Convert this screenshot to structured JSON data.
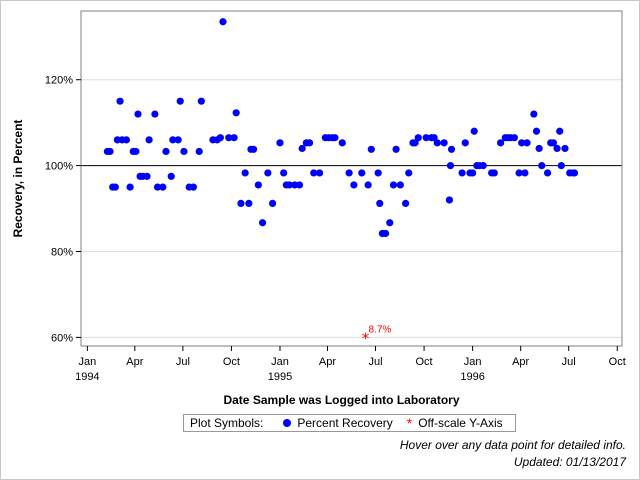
{
  "chart_data": {
    "type": "scatter",
    "ylabel": "Recovery, in Percent",
    "xlabel": "Date Sample was Logged into Laboratory",
    "ylim": [
      58,
      136
    ],
    "xlim": [
      "1993-12-20",
      "1996-10-10"
    ],
    "y_ticks": [
      60,
      80,
      100,
      120
    ],
    "y_tick_labels": [
      "60%",
      "80%",
      "100%",
      "120%"
    ],
    "x_ticks": [
      {
        "date": "1994-01-01",
        "label": "Jan",
        "year": "1994"
      },
      {
        "date": "1994-04-01",
        "label": "Apr",
        "year": ""
      },
      {
        "date": "1994-07-01",
        "label": "Jul",
        "year": ""
      },
      {
        "date": "1994-10-01",
        "label": "Oct",
        "year": ""
      },
      {
        "date": "1995-01-01",
        "label": "Jan",
        "year": "1995"
      },
      {
        "date": "1995-04-01",
        "label": "Apr",
        "year": ""
      },
      {
        "date": "1995-07-01",
        "label": "Jul",
        "year": ""
      },
      {
        "date": "1995-10-01",
        "label": "Oct",
        "year": ""
      },
      {
        "date": "1996-01-01",
        "label": "Jan",
        "year": "1996"
      },
      {
        "date": "1996-04-01",
        "label": "Apr",
        "year": ""
      },
      {
        "date": "1996-07-01",
        "label": "Jul",
        "year": ""
      },
      {
        "date": "1996-10-01",
        "label": "Oct",
        "year": ""
      }
    ],
    "reference_line": 100,
    "grid": "horizontal",
    "colors": {
      "points": "#0000ff",
      "offscale": "#ff0000",
      "reference": "#000000",
      "grid": "#dddddd",
      "axis": "#808080"
    },
    "series": [
      {
        "name": "Percent Recovery",
        "points": [
          {
            "x": "1994-02-08",
            "y": 103.3
          },
          {
            "x": "1994-02-13",
            "y": 103.3
          },
          {
            "x": "1994-02-18",
            "y": 95.0
          },
          {
            "x": "1994-02-23",
            "y": 95.0
          },
          {
            "x": "1994-02-27",
            "y": 106.0
          },
          {
            "x": "1994-03-04",
            "y": 115.0
          },
          {
            "x": "1994-03-08",
            "y": 106.0
          },
          {
            "x": "1994-03-16",
            "y": 106.0
          },
          {
            "x": "1994-03-23",
            "y": 95.0
          },
          {
            "x": "1994-03-29",
            "y": 103.3
          },
          {
            "x": "1994-04-03",
            "y": 103.3
          },
          {
            "x": "1994-04-07",
            "y": 112.0
          },
          {
            "x": "1994-04-11",
            "y": 97.5
          },
          {
            "x": "1994-04-16",
            "y": 97.5
          },
          {
            "x": "1994-04-24",
            "y": 97.5
          },
          {
            "x": "1994-04-28",
            "y": 106.0
          },
          {
            "x": "1994-05-09",
            "y": 112.0
          },
          {
            "x": "1994-05-14",
            "y": 95.0
          },
          {
            "x": "1994-05-24",
            "y": 95.0
          },
          {
            "x": "1994-05-30",
            "y": 103.3
          },
          {
            "x": "1994-06-09",
            "y": 97.5
          },
          {
            "x": "1994-06-12",
            "y": 106.0
          },
          {
            "x": "1994-06-22",
            "y": 106.0
          },
          {
            "x": "1994-06-26",
            "y": 115.0
          },
          {
            "x": "1994-07-03",
            "y": 103.3
          },
          {
            "x": "1994-07-13",
            "y": 95.0
          },
          {
            "x": "1994-07-21",
            "y": 95.0
          },
          {
            "x": "1994-08-01",
            "y": 103.3
          },
          {
            "x": "1994-08-05",
            "y": 115.0
          },
          {
            "x": "1994-08-27",
            "y": 106.0
          },
          {
            "x": "1994-09-04",
            "y": 106.0
          },
          {
            "x": "1994-09-10",
            "y": 106.5
          },
          {
            "x": "1994-09-15",
            "y": 133.5
          },
          {
            "x": "1994-09-26",
            "y": 106.5
          },
          {
            "x": "1994-10-06",
            "y": 106.5
          },
          {
            "x": "1994-10-10",
            "y": 112.3
          },
          {
            "x": "1994-10-19",
            "y": 91.2
          },
          {
            "x": "1994-10-27",
            "y": 98.3
          },
          {
            "x": "1994-11-03",
            "y": 91.2
          },
          {
            "x": "1994-11-07",
            "y": 103.8
          },
          {
            "x": "1994-11-12",
            "y": 103.8
          },
          {
            "x": "1994-11-21",
            "y": 95.5
          },
          {
            "x": "1994-11-29",
            "y": 86.7
          },
          {
            "x": "1994-12-09",
            "y": 98.3
          },
          {
            "x": "1994-12-18",
            "y": 91.2
          },
          {
            "x": "1995-01-01",
            "y": 105.3
          },
          {
            "x": "1995-01-08",
            "y": 98.3
          },
          {
            "x": "1995-01-13",
            "y": 95.5
          },
          {
            "x": "1995-01-19",
            "y": 95.5
          },
          {
            "x": "1995-01-29",
            "y": 95.5
          },
          {
            "x": "1995-02-07",
            "y": 95.5
          },
          {
            "x": "1995-02-12",
            "y": 104.0
          },
          {
            "x": "1995-02-20",
            "y": 105.3
          },
          {
            "x": "1995-02-26",
            "y": 105.3
          },
          {
            "x": "1995-03-06",
            "y": 98.3
          },
          {
            "x": "1995-03-17",
            "y": 98.3
          },
          {
            "x": "1995-03-28",
            "y": 106.5
          },
          {
            "x": "1995-04-03",
            "y": 106.5
          },
          {
            "x": "1995-04-10",
            "y": 106.5
          },
          {
            "x": "1995-04-15",
            "y": 106.5
          },
          {
            "x": "1995-04-29",
            "y": 105.3
          },
          {
            "x": "1995-05-12",
            "y": 98.3
          },
          {
            "x": "1995-05-21",
            "y": 95.5
          },
          {
            "x": "1995-06-05",
            "y": 98.3
          },
          {
            "x": "1995-06-17",
            "y": 95.5
          },
          {
            "x": "1995-06-23",
            "y": 103.8
          },
          {
            "x": "1995-07-06",
            "y": 98.3
          },
          {
            "x": "1995-07-09",
            "y": 91.2
          },
          {
            "x": "1995-07-14",
            "y": 84.2
          },
          {
            "x": "1995-07-20",
            "y": 84.2
          },
          {
            "x": "1995-07-28",
            "y": 86.7
          },
          {
            "x": "1995-08-04",
            "y": 95.5
          },
          {
            "x": "1995-08-09",
            "y": 103.8
          },
          {
            "x": "1995-08-17",
            "y": 95.5
          },
          {
            "x": "1995-08-27",
            "y": 91.2
          },
          {
            "x": "1995-09-02",
            "y": 98.3
          },
          {
            "x": "1995-09-10",
            "y": 105.3
          },
          {
            "x": "1995-09-14",
            "y": 105.3
          },
          {
            "x": "1995-09-20",
            "y": 106.5
          },
          {
            "x": "1995-10-05",
            "y": 106.5
          },
          {
            "x": "1995-10-15",
            "y": 106.5
          },
          {
            "x": "1995-10-20",
            "y": 106.5
          },
          {
            "x": "1995-10-26",
            "y": 105.3
          },
          {
            "x": "1995-11-08",
            "y": 105.3
          },
          {
            "x": "1995-11-18",
            "y": 92.0
          },
          {
            "x": "1995-11-20",
            "y": 100.0
          },
          {
            "x": "1995-11-22",
            "y": 103.8
          },
          {
            "x": "1995-12-12",
            "y": 98.3
          },
          {
            "x": "1995-12-18",
            "y": 105.3
          },
          {
            "x": "1995-12-27",
            "y": 98.3
          },
          {
            "x": "1996-01-01",
            "y": 98.3
          },
          {
            "x": "1996-01-04",
            "y": 108.0
          },
          {
            "x": "1996-01-09",
            "y": 100.0
          },
          {
            "x": "1996-01-14",
            "y": 100.0
          },
          {
            "x": "1996-01-21",
            "y": 100.0
          },
          {
            "x": "1996-02-06",
            "y": 98.3
          },
          {
            "x": "1996-02-11",
            "y": 98.3
          },
          {
            "x": "1996-02-23",
            "y": 105.3
          },
          {
            "x": "1996-03-03",
            "y": 106.5
          },
          {
            "x": "1996-03-08",
            "y": 106.5
          },
          {
            "x": "1996-03-13",
            "y": 106.5
          },
          {
            "x": "1996-03-20",
            "y": 106.5
          },
          {
            "x": "1996-03-29",
            "y": 98.3
          },
          {
            "x": "1996-04-03",
            "y": 105.3
          },
          {
            "x": "1996-04-09",
            "y": 98.3
          },
          {
            "x": "1996-04-13",
            "y": 105.3
          },
          {
            "x": "1996-04-26",
            "y": 112.0
          },
          {
            "x": "1996-05-01",
            "y": 108.0
          },
          {
            "x": "1996-05-06",
            "y": 104.0
          },
          {
            "x": "1996-05-11",
            "y": 100.0
          },
          {
            "x": "1996-05-22",
            "y": 98.3
          },
          {
            "x": "1996-05-28",
            "y": 105.3
          },
          {
            "x": "1996-06-02",
            "y": 105.3
          },
          {
            "x": "1996-06-09",
            "y": 104.0
          },
          {
            "x": "1996-06-14",
            "y": 108.0
          },
          {
            "x": "1996-06-17",
            "y": 100.0
          },
          {
            "x": "1996-06-24",
            "y": 104.0
          },
          {
            "x": "1996-07-03",
            "y": 98.3
          },
          {
            "x": "1996-07-09",
            "y": 98.3
          },
          {
            "x": "1996-07-12",
            "y": 98.3
          }
        ]
      },
      {
        "name": "Off-scale Y-Axis",
        "points": [
          {
            "x": "1995-06-12",
            "y": 60,
            "label": "8.7%"
          }
        ]
      }
    ]
  },
  "legend": {
    "title": "Plot Symbols:",
    "items": [
      "Percent Recovery",
      "Off-scale Y-Axis"
    ]
  },
  "notes": {
    "hover": "Hover over any data point for detailed info.",
    "updated": "Updated: 01/13/2017"
  }
}
